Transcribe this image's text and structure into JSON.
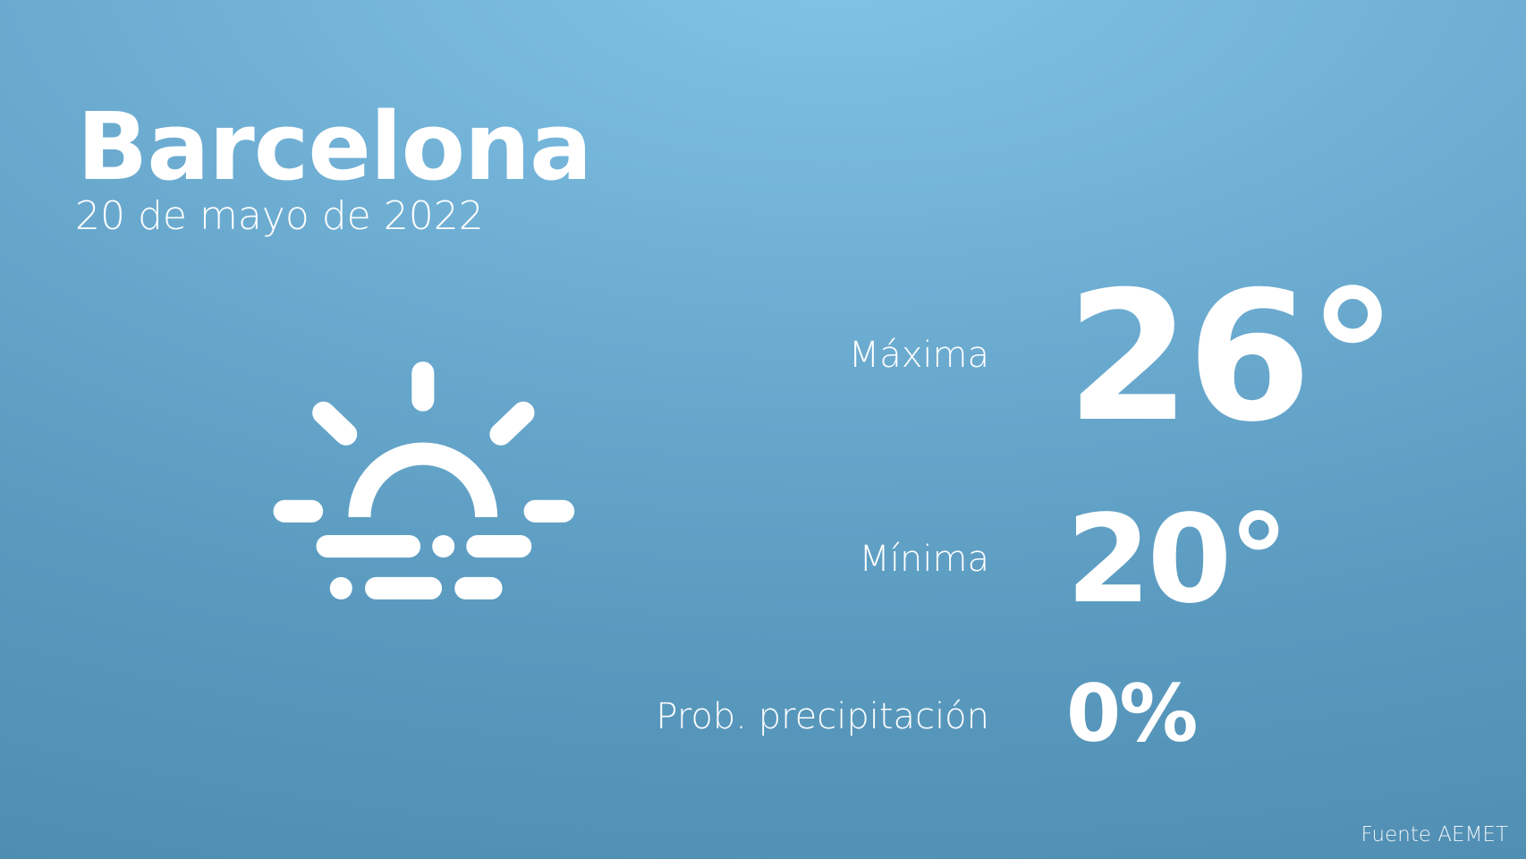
{
  "city": "Barcelona",
  "date": "20 de mayo de 2022",
  "weather_icon": "sunrise-fog-icon",
  "max": {
    "label": "Máxima",
    "value": "26°"
  },
  "min": {
    "label": "Mínima",
    "value": "20°"
  },
  "precip": {
    "label": "Prob. precipitación",
    "value": "0%"
  },
  "source": "Fuente AEMET",
  "colors": {
    "background_top": "#80c4e7",
    "background_bottom": "#4e8bb0",
    "text": "#ffffff"
  }
}
